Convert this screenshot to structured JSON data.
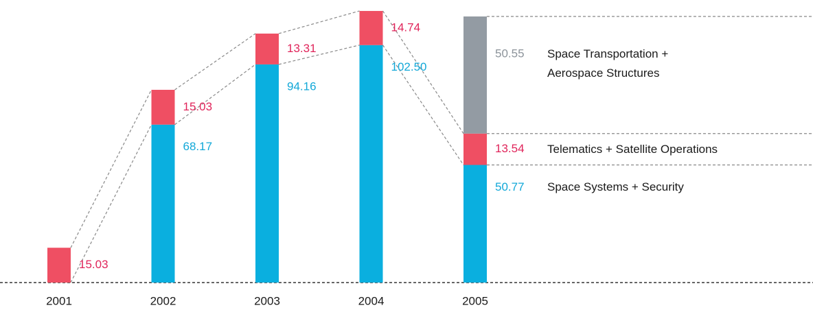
{
  "chart_data": {
    "type": "stacked-bar",
    "categories": [
      "2001",
      "2002",
      "2003",
      "2004",
      "2005"
    ],
    "series": [
      {
        "name": "Space Systems + Security",
        "color": "#0aafdf",
        "label_color": "#12a8d8",
        "values": [
          null,
          68.17,
          94.16,
          102.5,
          50.77
        ],
        "value_labels": [
          null,
          "68.17",
          "94.16",
          "102.50",
          "50.77"
        ]
      },
      {
        "name": "Telematics + Satellite Operations",
        "color": "#ef4f63",
        "label_color": "#e0245a",
        "values": [
          15.03,
          15.03,
          13.31,
          14.74,
          13.54
        ]
      },
      {
        "name": "Space Transportation + Aerospace Structures",
        "color": "#939ba3",
        "label_color": "#8d949b",
        "values": [
          null,
          null,
          null,
          null,
          50.55
        ]
      }
    ]
  }
}
